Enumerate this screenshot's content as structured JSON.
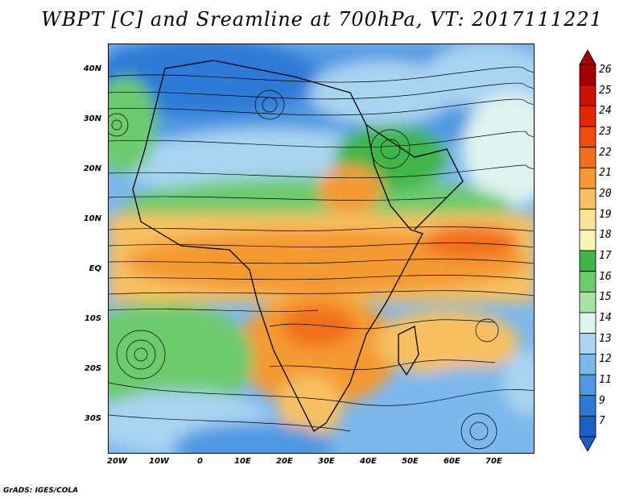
{
  "title": "WBPT [C] and Sreamline at 700hPa, VT: 2017111221",
  "footer": "GrADS: IGES/COLA",
  "lat_labels": [
    "40N",
    "30N",
    "20N",
    "10N",
    "EQ",
    "10S",
    "20S",
    "30S"
  ],
  "lon_labels": [
    "20W",
    "10W",
    "0",
    "10E",
    "20E",
    "30E",
    "40E",
    "50E",
    "60E",
    "70E"
  ],
  "colorbar": {
    "labels": [
      "26",
      "25",
      "24",
      "23",
      "22",
      "21",
      "20",
      "19",
      "18",
      "17",
      "16",
      "15",
      "14",
      "13",
      "12",
      "11",
      "9",
      "7"
    ],
    "colors": [
      "#a50000",
      "#c81400",
      "#e22800",
      "#f04a10",
      "#f26e1c",
      "#f59a30",
      "#f8c060",
      "#fbe39a",
      "#f6f6b8",
      "#3fb548",
      "#6dca6d",
      "#a8e2a4",
      "#dff4f0",
      "#a9d4f2",
      "#7cb8ec",
      "#4f98e2",
      "#2f7ad6",
      "#1e5cc8"
    ]
  }
}
